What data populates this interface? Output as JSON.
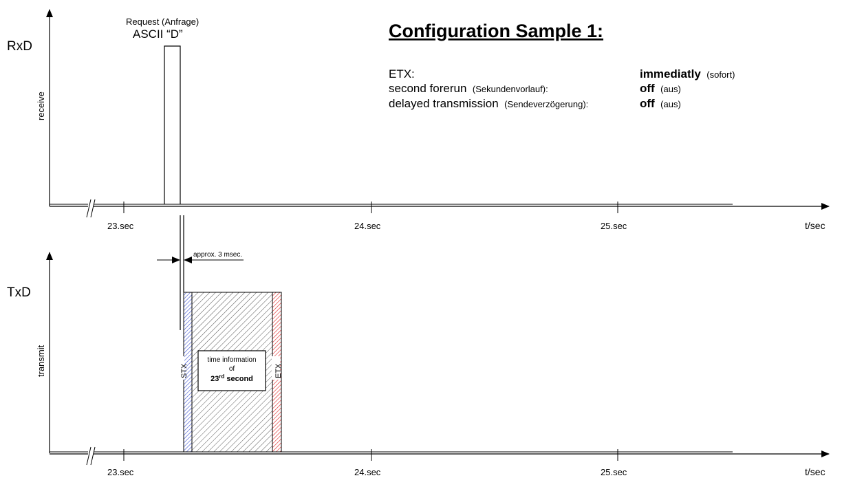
{
  "title": "Configuration Sample 1:",
  "rx": {
    "label": "RxD",
    "axis_label": "receive"
  },
  "tx": {
    "label": "TxD",
    "axis_label": "transmit"
  },
  "request": {
    "line1": "Request (Anfrage)",
    "line2": "ASCII “D”"
  },
  "ticks": [
    "23.sec",
    "24.sec",
    "25.sec"
  ],
  "time_axis_label": "t/sec",
  "delay_label": "approx. 3 msec.",
  "block": {
    "stx": "STX",
    "etx": "ETX",
    "info_line1": "time information",
    "info_line2": "of",
    "info_line3_num": "23",
    "info_line3_sup": "rd",
    "info_line3_word": "second"
  },
  "config": [
    {
      "name": "ETX:",
      "name_sub": "",
      "value": "immediatly",
      "value_sub": "(sofort)"
    },
    {
      "name": "second forerun",
      "name_sub": "(Sekundenvorlauf):",
      "value": "off",
      "value_sub": "(aus)"
    },
    {
      "name": "delayed transmission",
      "name_sub": "(Sendeverzögerung):",
      "value": "off",
      "value_sub": "(aus)"
    }
  ],
  "colors": {
    "stx_hatch": "#3b4fd0",
    "etx_hatch": "#e02020",
    "main_hatch": "#555555"
  }
}
